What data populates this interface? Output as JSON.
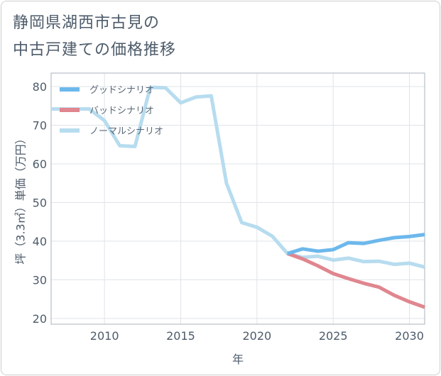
{
  "title_line1": "静岡県湖西市古見の",
  "title_line2": "中古戸建ての価格推移",
  "chart_data": {
    "type": "line",
    "xlabel": "年",
    "ylabel": "坪（3.3㎡）単価（万円）",
    "xlim": [
      2006.5,
      2031
    ],
    "ylim": [
      18.5,
      83.5
    ],
    "xticks": [
      2010,
      2015,
      2020,
      2025,
      2030
    ],
    "yticks": [
      20,
      30,
      40,
      50,
      60,
      70,
      80
    ],
    "grid": true,
    "legend_position": "top-left",
    "series": [
      {
        "name": "グッドシナリオ",
        "color": "#6cb8ec",
        "x": [
          2022,
          2023,
          2024,
          2025,
          2026,
          2027,
          2028,
          2029,
          2030,
          2031
        ],
        "values": [
          36.8,
          38.0,
          37.4,
          37.8,
          39.6,
          39.4,
          40.2,
          40.9,
          41.2,
          41.7
        ]
      },
      {
        "name": "バッドシナリオ",
        "color": "#e0868f",
        "x": [
          2022,
          2023,
          2024,
          2025,
          2026,
          2027,
          2028,
          2029,
          2030,
          2031
        ],
        "values": [
          36.8,
          35.4,
          33.6,
          31.6,
          30.3,
          29.1,
          28.1,
          26.0,
          24.3,
          22.9
        ]
      },
      {
        "name": "ノーマルシナリオ",
        "color": "#b7dcef",
        "x": [
          2006.5,
          2007,
          2008,
          2009,
          2010,
          2011,
          2012,
          2013,
          2014,
          2015,
          2016,
          2017,
          2018,
          2019,
          2020,
          2021,
          2022,
          2023,
          2024,
          2025,
          2026,
          2027,
          2028,
          2029,
          2030,
          2031
        ],
        "values": [
          74.2,
          74.2,
          74.2,
          74.2,
          71.2,
          64.7,
          64.5,
          79.8,
          79.7,
          75.8,
          77.3,
          77.6,
          55.0,
          44.8,
          43.6,
          41.3,
          36.8,
          35.8,
          36.1,
          35.1,
          35.6,
          34.7,
          34.8,
          34.0,
          34.3,
          33.3
        ]
      }
    ]
  }
}
